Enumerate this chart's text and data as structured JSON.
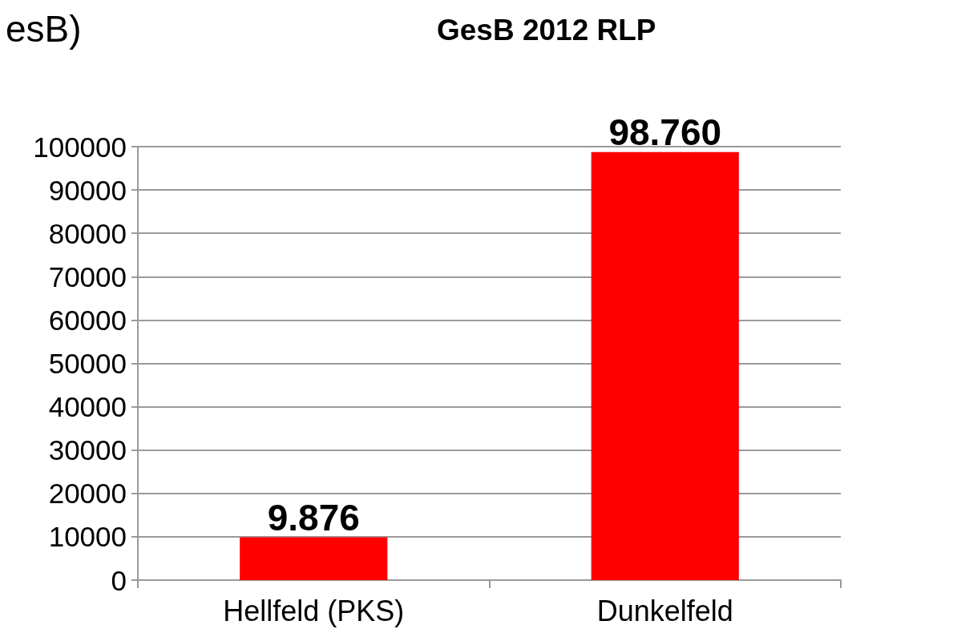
{
  "chart_data": {
    "type": "bar",
    "title": "GesB 2012 RLP",
    "annotations": [
      "esB)"
    ],
    "categories": [
      "Hellfeld (PKS)",
      "Dunkelfeld"
    ],
    "values": [
      9876,
      98760
    ],
    "value_labels": [
      "9.876",
      "98.760"
    ],
    "color": "#ff0000",
    "ylim": [
      0,
      100000
    ],
    "yticks": [
      0,
      10000,
      20000,
      30000,
      40000,
      50000,
      60000,
      70000,
      80000,
      90000,
      100000
    ],
    "grid": true
  }
}
